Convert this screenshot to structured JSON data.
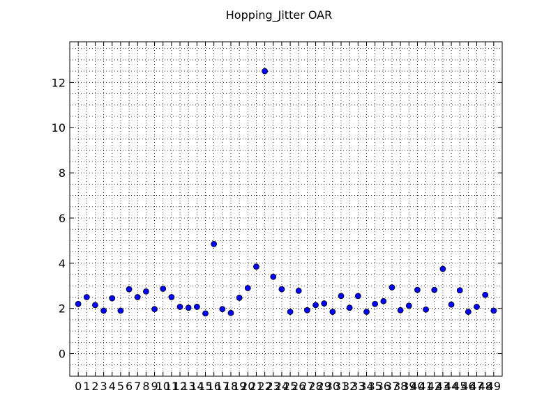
{
  "chart_data": {
    "type": "scatter",
    "title": "Hopping_Jitter OAR",
    "xlabel": "",
    "ylabel": "",
    "xlim": [
      -1,
      50
    ],
    "ylim": [
      -1,
      13.8
    ],
    "x_ticks": [
      0,
      1,
      2,
      3,
      4,
      5,
      6,
      7,
      8,
      9,
      10,
      11,
      12,
      13,
      14,
      15,
      16,
      17,
      18,
      19,
      20,
      21,
      22,
      23,
      24,
      25,
      26,
      27,
      28,
      29,
      30,
      31,
      32,
      33,
      34,
      35,
      36,
      37,
      38,
      39,
      40,
      41,
      42,
      43,
      44,
      45,
      46,
      47,
      48,
      49
    ],
    "y_ticks": [
      0,
      2,
      4,
      6,
      8,
      10,
      12
    ],
    "grid": true,
    "marker_color": "#0000ff",
    "series": [
      {
        "x": [
          0,
          1,
          2,
          3,
          4,
          5,
          6,
          7,
          8,
          9,
          10,
          11,
          12,
          13,
          14,
          15,
          16,
          17,
          18,
          19,
          20,
          21,
          22,
          23,
          24,
          25,
          26,
          27,
          28,
          29,
          30,
          31,
          32,
          33,
          34,
          35,
          36,
          37,
          38,
          39,
          40,
          41,
          42,
          43,
          44,
          45,
          46,
          47,
          48,
          49
        ],
        "values": [
          2.2,
          2.5,
          2.15,
          1.9,
          2.45,
          1.9,
          2.85,
          2.5,
          2.75,
          1.97,
          2.87,
          2.5,
          2.07,
          2.03,
          2.07,
          1.78,
          4.85,
          1.97,
          1.8,
          2.47,
          2.9,
          3.85,
          12.5,
          3.4,
          2.85,
          1.85,
          2.78,
          1.92,
          2.15,
          2.22,
          1.85,
          2.55,
          2.03,
          2.55,
          1.85,
          2.2,
          2.32,
          2.93,
          1.92,
          2.12,
          2.82,
          1.95,
          2.82,
          3.75,
          2.17,
          2.8,
          1.85,
          2.07,
          2.6,
          1.9
        ]
      }
    ]
  }
}
